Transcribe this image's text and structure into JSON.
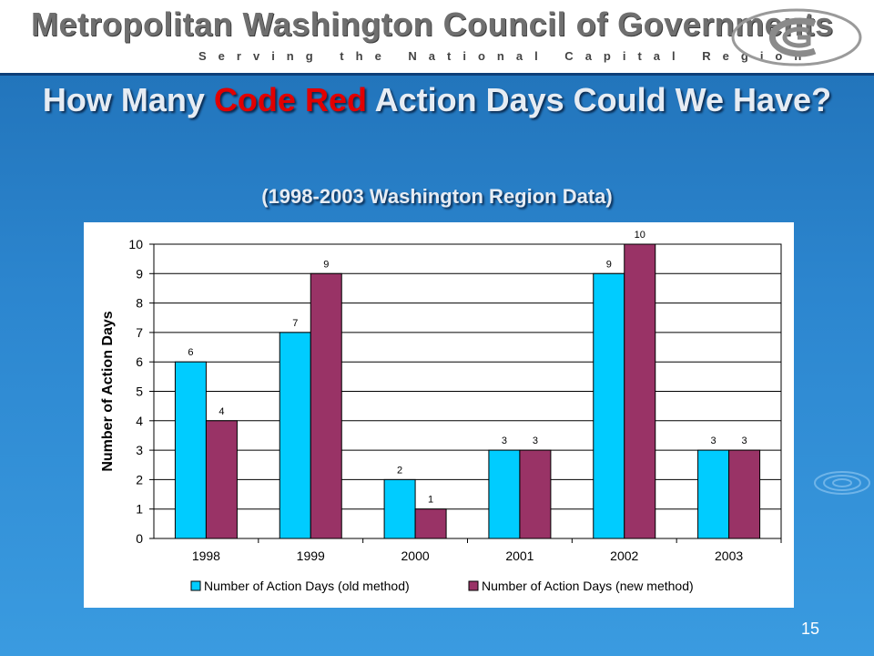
{
  "header": {
    "org_name": "Metropolitan Washington Council of Governments",
    "tagline": "Serving the National Capital Region"
  },
  "slide": {
    "title_part1": "How Many ",
    "title_red": "Code Red",
    "title_part2": " Action Days Could We Have?",
    "subtitle": "(1998-2003 Washington Region Data)",
    "number": "15"
  },
  "colors": {
    "old_method": "#00ccff",
    "new_method": "#993366",
    "title_red": "#e10000"
  },
  "chart_data": {
    "type": "bar",
    "categories": [
      "1998",
      "1999",
      "2000",
      "2001",
      "2002",
      "2003"
    ],
    "series": [
      {
        "name": "Number of Action Days (old method)",
        "values": [
          6,
          7,
          2,
          3,
          9,
          3
        ]
      },
      {
        "name": "Number of Action Days (new method)",
        "values": [
          4,
          9,
          1,
          3,
          10,
          3
        ]
      }
    ],
    "ylabel": "Number of Action Days",
    "ylim": [
      0,
      10
    ],
    "yticks": [
      0,
      1,
      2,
      3,
      4,
      5,
      6,
      7,
      8,
      9,
      10
    ],
    "grid": true,
    "legend_position": "bottom",
    "data_labels": true
  }
}
